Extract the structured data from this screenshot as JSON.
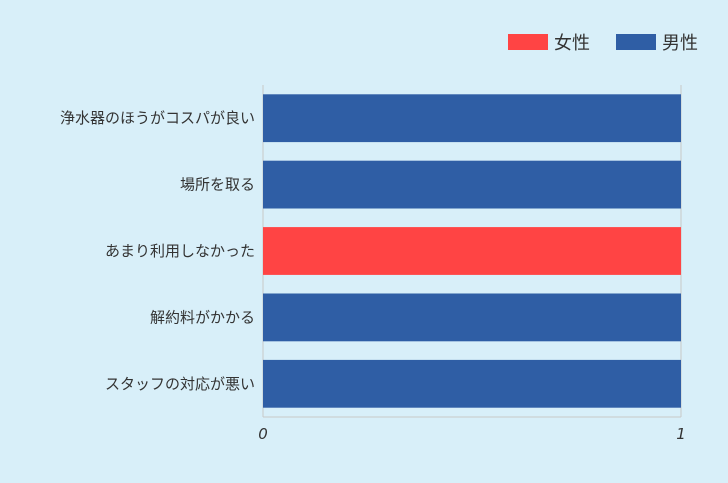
{
  "chart_data": {
    "type": "bar",
    "orientation": "horizontal",
    "stacked": true,
    "categories": [
      "浄水器のほうがコスパが良い",
      "場所を取る",
      "あまり利用しなかった",
      "解約料がかかる",
      "スタッフの対応が悪い"
    ],
    "series": [
      {
        "name": "女性",
        "color": "#ff4444",
        "values": [
          0,
          0,
          1,
          0,
          0
        ]
      },
      {
        "name": "男性",
        "color": "#2f5ea5",
        "values": [
          1,
          1,
          0,
          1,
          1
        ]
      }
    ],
    "xlim": [
      0,
      1
    ],
    "xticks": [
      "0",
      "1"
    ],
    "grid": false,
    "legend_position": "top-right"
  },
  "colors": {
    "background": "#d8eff9",
    "axis": "#c8c8c8",
    "text": "#333333"
  }
}
